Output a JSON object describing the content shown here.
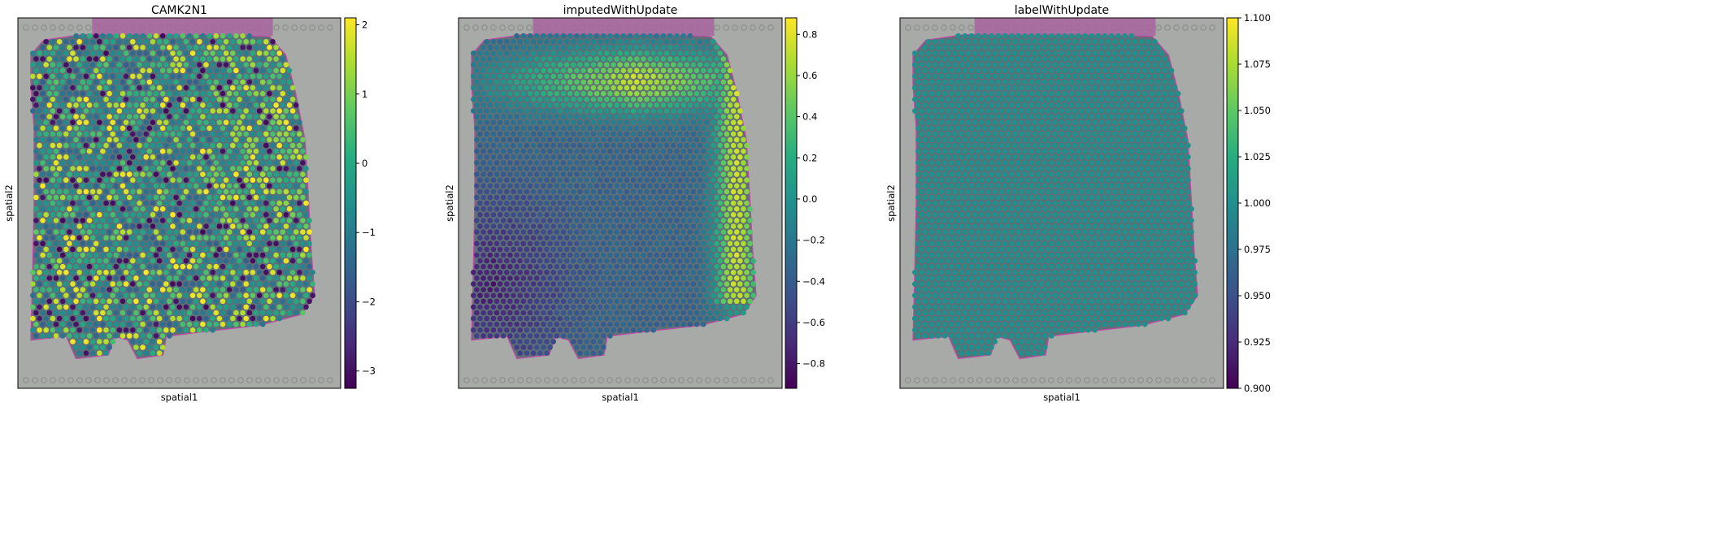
{
  "chart_data": [
    {
      "type": "heatmap",
      "title": "CAMK2N1",
      "xlabel": "spatial1",
      "ylabel": "spatial2",
      "colormap": "viridis",
      "colorbar": {
        "vmin": -3.25,
        "vmax": 2.1,
        "ticks": [
          2,
          1,
          0,
          -1,
          -2,
          -3
        ],
        "tick_labels": [
          "2",
          "1",
          "0",
          "−1",
          "−2",
          "−3"
        ]
      },
      "pattern": "noisy"
    },
    {
      "type": "heatmap",
      "title": "imputedWithUpdate",
      "xlabel": "spatial1",
      "ylabel": "spatial2",
      "colormap": "viridis",
      "colorbar": {
        "vmin": -0.92,
        "vmax": 0.88,
        "ticks": [
          0.8,
          0.6,
          0.4,
          0.2,
          0.0,
          -0.2,
          -0.4,
          -0.6,
          -0.8
        ],
        "tick_labels": [
          "0.8",
          "0.6",
          "0.4",
          "0.2",
          "0.0",
          "−0.2",
          "−0.4",
          "−0.6",
          "−0.8"
        ]
      },
      "pattern": "smooth"
    },
    {
      "type": "heatmap",
      "title": "labelWithUpdate",
      "xlabel": "spatial1",
      "ylabel": "spatial2",
      "colormap": "viridis",
      "colorbar": {
        "vmin": 0.9,
        "vmax": 1.1,
        "ticks": [
          1.1,
          1.075,
          1.05,
          1.025,
          1.0,
          0.975,
          0.95,
          0.925,
          0.9
        ],
        "tick_labels": [
          "1.100",
          "1.075",
          "1.050",
          "1.025",
          "1.000",
          "0.975",
          "0.950",
          "0.925",
          "0.900"
        ]
      },
      "pattern": "constant",
      "constant_value": 1.0
    }
  ]
}
